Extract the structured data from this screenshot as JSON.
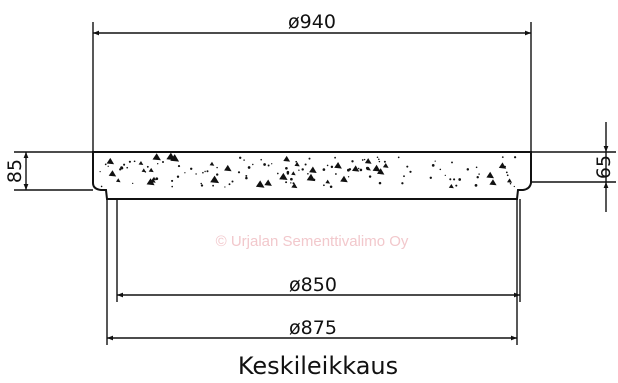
{
  "drawing": {
    "dimensions": {
      "top_diameter": "ø940",
      "inner_diameter": "ø850",
      "outer_diameter": "ø875",
      "total_height": "85",
      "slab_height": "65"
    },
    "watermark": "© Urjalan Sementtivalimo Oy",
    "caption": "Keskileikkaus",
    "colors": {
      "line": "#111111",
      "watermark": "#f2c8cc"
    }
  }
}
